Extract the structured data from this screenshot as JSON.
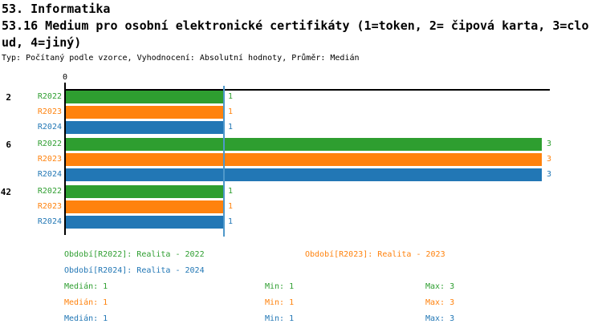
{
  "header": {
    "line1": "53. Informatika",
    "line2": "53.16 Medium pro osobní elektronické certifikáty (1=token, 2= čipová karta, 3=clo",
    "line3": "ud, 4=jiný)",
    "meta": "Typ: Počítaný podle vzorce, Vyhodnocení: Absolutní hodnoty, Průměr: Medián"
  },
  "chart_data": {
    "type": "bar",
    "orientation": "horizontal",
    "title": "53.16 Medium pro osobní elektronické certifikáty (1=token, 2= čipová karta, 3=cloud, 4=jiný)",
    "categories": [
      "2",
      "6",
      "42"
    ],
    "series": [
      {
        "name": "R2022",
        "color": "#2e9e30",
        "values": [
          1,
          3,
          1
        ]
      },
      {
        "name": "R2023",
        "color": "#ff820d",
        "values": [
          1,
          3,
          1
        ]
      },
      {
        "name": "R2024",
        "color": "#2277b5",
        "values": [
          1,
          3,
          1
        ]
      }
    ],
    "xlim": [
      0,
      3.05
    ],
    "origin_tick_label": "0",
    "grid": false,
    "median_line": {
      "value": 1,
      "color": "#4f98ca"
    },
    "legend": [
      {
        "label": "Období[R2022]: Realita - 2022",
        "color": "#2e9e30"
      },
      {
        "label": "Období[R2023]: Realita - 2023",
        "color": "#ff820d"
      },
      {
        "label": "Období[R2024]: Realita - 2024",
        "color": "#2277b5"
      }
    ],
    "stats": [
      {
        "series": "R2022",
        "color": "#2e9e30",
        "median": "Medián: 1",
        "min": "Min: 1",
        "max": "Max: 3"
      },
      {
        "series": "R2023",
        "color": "#ff820d",
        "median": "Medián: 1",
        "min": "Min: 1",
        "max": "Max: 3"
      },
      {
        "series": "R2024",
        "color": "#2277b5",
        "median": "Medián: 1",
        "min": "Min: 1",
        "max": "Max: 3"
      }
    ]
  }
}
